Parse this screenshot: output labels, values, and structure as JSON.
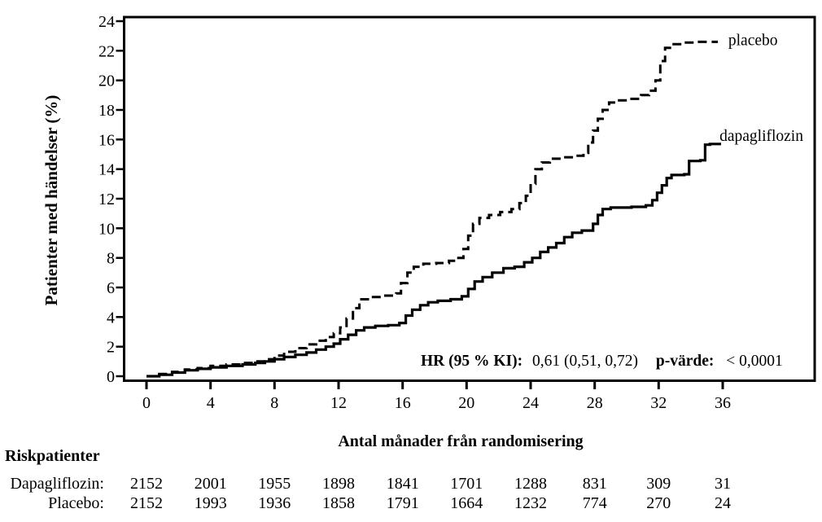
{
  "page": {
    "background": "#ffffff",
    "ink": "#000000"
  },
  "chart_data": {
    "type": "line",
    "subtype": "kaplan-meier-cumulative-incidence-step",
    "title": "",
    "xlabel": "Antal månader från randomisering",
    "ylabel": "Patienter med händelser (%)",
    "xlim": [
      0,
      36
    ],
    "ylim": [
      0,
      24
    ],
    "x_ticks": [
      0,
      4,
      8,
      12,
      16,
      20,
      24,
      28,
      32,
      36
    ],
    "y_ticks": [
      0,
      2,
      4,
      6,
      8,
      10,
      12,
      14,
      16,
      18,
      20,
      22,
      24
    ],
    "grid": false,
    "line_color": "#000000",
    "series": [
      {
        "name": "placebo",
        "label": "placebo",
        "style": "dashed",
        "label_pos": {
          "month": 36.35,
          "pct": 22.75
        },
        "points": [
          [
            0,
            0
          ],
          [
            0.8,
            0.15
          ],
          [
            1.6,
            0.3
          ],
          [
            2.4,
            0.45
          ],
          [
            3.2,
            0.55
          ],
          [
            4,
            0.7
          ],
          [
            5,
            0.8
          ],
          [
            6,
            0.9
          ],
          [
            6.8,
            1.0
          ],
          [
            7.4,
            1.15
          ],
          [
            8,
            1.4
          ],
          [
            8.6,
            1.65
          ],
          [
            9.3,
            1.9
          ],
          [
            10,
            2.15
          ],
          [
            10.6,
            2.4
          ],
          [
            11.2,
            2.65
          ],
          [
            11.7,
            2.9
          ],
          [
            12.1,
            3.3
          ],
          [
            12.5,
            3.9
          ],
          [
            12.9,
            4.6
          ],
          [
            13.3,
            5.2
          ],
          [
            14,
            5.35
          ],
          [
            14.8,
            5.45
          ],
          [
            15.6,
            5.6
          ],
          [
            15.9,
            6.3
          ],
          [
            16.3,
            7.0
          ],
          [
            16.7,
            7.4
          ],
          [
            17.3,
            7.6
          ],
          [
            18.1,
            7.65
          ],
          [
            18.9,
            7.8
          ],
          [
            19.4,
            8.0
          ],
          [
            19.8,
            8.6
          ],
          [
            20.1,
            9.5
          ],
          [
            20.4,
            10.3
          ],
          [
            20.8,
            10.7
          ],
          [
            21.4,
            10.9
          ],
          [
            22.1,
            11.1
          ],
          [
            22.8,
            11.3
          ],
          [
            23.3,
            11.7
          ],
          [
            23.7,
            12.2
          ],
          [
            24.0,
            13.0
          ],
          [
            24.3,
            14.0
          ],
          [
            24.7,
            14.45
          ],
          [
            25.2,
            14.7
          ],
          [
            26.0,
            14.8
          ],
          [
            26.7,
            14.9
          ],
          [
            27.3,
            15.1
          ],
          [
            27.6,
            15.8
          ],
          [
            27.9,
            16.6
          ],
          [
            28.2,
            17.4
          ],
          [
            28.5,
            18.0
          ],
          [
            28.9,
            18.5
          ],
          [
            29.4,
            18.65
          ],
          [
            30.2,
            18.75
          ],
          [
            30.9,
            19.0
          ],
          [
            31.4,
            19.3
          ],
          [
            31.8,
            20.0
          ],
          [
            32.1,
            21.3
          ],
          [
            32.4,
            22.2
          ],
          [
            32.8,
            22.45
          ],
          [
            33.6,
            22.55
          ],
          [
            34.3,
            22.6
          ],
          [
            35.7,
            22.6
          ]
        ]
      },
      {
        "name": "dapagliflozin",
        "label": "dapagliflozin",
        "style": "solid",
        "label_pos": {
          "month": 35.8,
          "pct": 16.3
        },
        "points": [
          [
            0,
            0
          ],
          [
            0.8,
            0.1
          ],
          [
            1.6,
            0.25
          ],
          [
            2.4,
            0.4
          ],
          [
            3.2,
            0.5
          ],
          [
            4,
            0.6
          ],
          [
            5,
            0.7
          ],
          [
            6,
            0.8
          ],
          [
            6.8,
            0.9
          ],
          [
            7.4,
            1.0
          ],
          [
            8,
            1.15
          ],
          [
            8.6,
            1.3
          ],
          [
            9.3,
            1.45
          ],
          [
            10,
            1.6
          ],
          [
            10.6,
            1.8
          ],
          [
            11.2,
            2.0
          ],
          [
            11.7,
            2.2
          ],
          [
            12.1,
            2.5
          ],
          [
            12.6,
            2.8
          ],
          [
            13.1,
            3.1
          ],
          [
            13.6,
            3.3
          ],
          [
            14.3,
            3.4
          ],
          [
            15.1,
            3.45
          ],
          [
            15.8,
            3.6
          ],
          [
            16.2,
            4.1
          ],
          [
            16.6,
            4.5
          ],
          [
            17.1,
            4.8
          ],
          [
            17.6,
            5.0
          ],
          [
            18.2,
            5.1
          ],
          [
            19.0,
            5.2
          ],
          [
            19.7,
            5.4
          ],
          [
            20.1,
            5.9
          ],
          [
            20.5,
            6.4
          ],
          [
            21.0,
            6.7
          ],
          [
            21.6,
            7.0
          ],
          [
            22.3,
            7.3
          ],
          [
            23.0,
            7.4
          ],
          [
            23.6,
            7.7
          ],
          [
            24.1,
            8.0
          ],
          [
            24.6,
            8.4
          ],
          [
            25.1,
            8.7
          ],
          [
            25.6,
            9.0
          ],
          [
            26.1,
            9.4
          ],
          [
            26.6,
            9.7
          ],
          [
            27.2,
            9.85
          ],
          [
            27.9,
            10.3
          ],
          [
            28.2,
            10.9
          ],
          [
            28.5,
            11.3
          ],
          [
            29.0,
            11.4
          ],
          [
            30.3,
            11.45
          ],
          [
            31.2,
            11.55
          ],
          [
            31.6,
            11.9
          ],
          [
            31.9,
            12.4
          ],
          [
            32.2,
            12.9
          ],
          [
            32.5,
            13.4
          ],
          [
            32.8,
            13.6
          ],
          [
            33.6,
            13.65
          ],
          [
            33.9,
            14.55
          ],
          [
            34.6,
            14.6
          ],
          [
            34.9,
            15.65
          ],
          [
            35.2,
            15.7
          ],
          [
            35.9,
            15.7
          ]
        ]
      }
    ],
    "annotation": {
      "hr_label": "HR (95 % KI):",
      "hr_value": "0,61 (0,51, 0,72)",
      "p_label": "p-värde:",
      "p_value": "< 0,0001"
    }
  },
  "risk_table": {
    "title": "Riskpatienter",
    "months": [
      0,
      4,
      8,
      12,
      16,
      20,
      24,
      28,
      32,
      36
    ],
    "rows": [
      {
        "label": "Dapagliflozin:",
        "values": [
          2152,
          2001,
          1955,
          1898,
          1841,
          1701,
          1288,
          831,
          309,
          31
        ]
      },
      {
        "label": "Placebo:",
        "values": [
          2152,
          1993,
          1936,
          1858,
          1791,
          1664,
          1232,
          774,
          270,
          24
        ]
      }
    ]
  }
}
